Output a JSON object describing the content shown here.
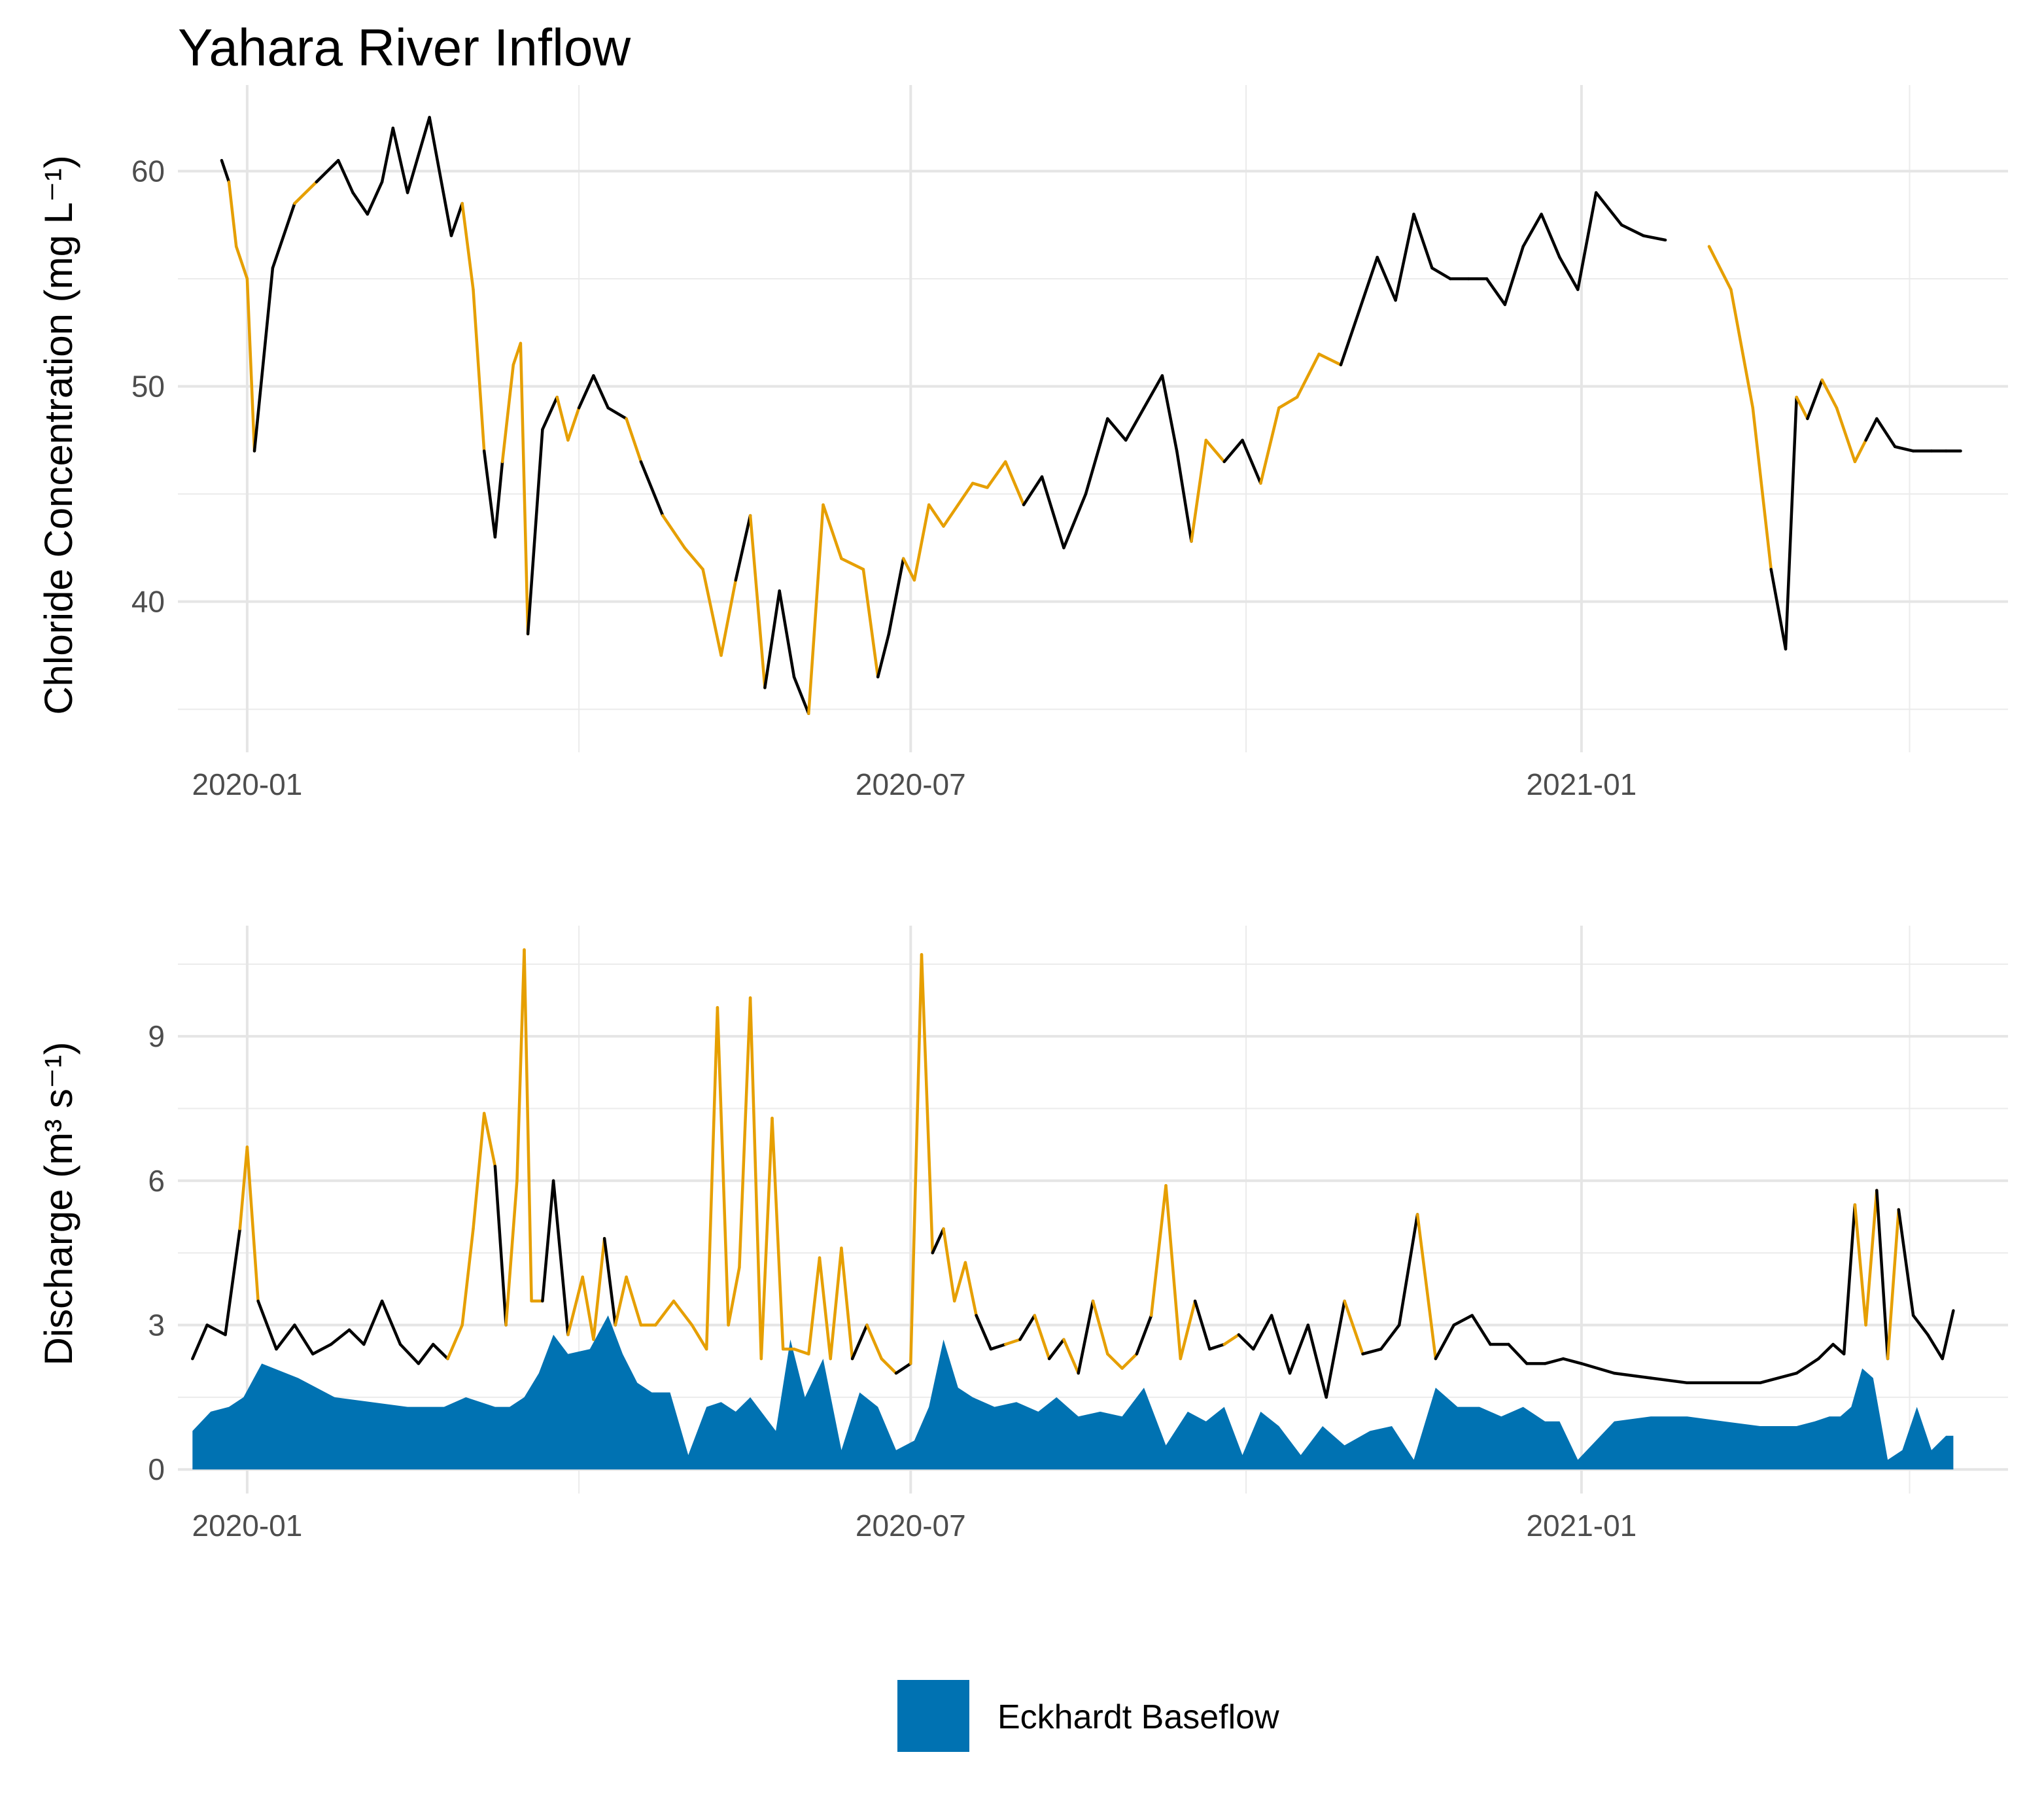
{
  "chart_data": [
    {
      "type": "line",
      "title": "Yahara River Inflow",
      "ylabel": "Chloride Concentration (mg L⁻¹)",
      "x_tick_labels": [
        "2020-01",
        "2020-07",
        "2021-01"
      ],
      "y_tick_labels": [
        "40",
        "50",
        "60"
      ],
      "ylim": [
        33,
        64
      ],
      "xlim": [
        "2019-12-13",
        "2021-04-28"
      ],
      "grid": true,
      "colors": {
        "baseflow_period": "#000000",
        "event_period": "#E69F00"
      },
      "series": [
        {
          "x": [
            "2019-12-25",
            "2019-12-27",
            "2019-12-29",
            "2020-01-01",
            "2020-01-03",
            "2020-01-08",
            "2020-01-14",
            "2020-01-20",
            "2020-01-26",
            "2020-01-30",
            "2020-02-03",
            "2020-02-07",
            "2020-02-10",
            "2020-02-14",
            "2020-02-20",
            "2020-02-26",
            "2020-02-29",
            "2020-03-03",
            "2020-03-06",
            "2020-03-09",
            "2020-03-11",
            "2020-03-14",
            "2020-03-16",
            "2020-03-18",
            "2020-03-22",
            "2020-03-26",
            "2020-03-29",
            "2020-04-01",
            "2020-04-05",
            "2020-04-09",
            "2020-04-14",
            "2020-04-18",
            "2020-04-24",
            "2020-04-30",
            "2020-05-05",
            "2020-05-10",
            "2020-05-14",
            "2020-05-18",
            "2020-05-22",
            "2020-05-26",
            "2020-05-30",
            "2020-06-03",
            "2020-06-07",
            "2020-06-12",
            "2020-06-18",
            "2020-06-22",
            "2020-06-25",
            "2020-06-29",
            "2020-07-02",
            "2020-07-06",
            "2020-07-10",
            "2020-07-14",
            "2020-07-18",
            "2020-07-22",
            "2020-07-27",
            "2020-08-01",
            "2020-08-06",
            "2020-08-12",
            "2020-08-18",
            "2020-08-24",
            "2020-08-29",
            "2020-09-03",
            "2020-09-08",
            "2020-09-12",
            "2020-09-16",
            "2020-09-20",
            "2020-09-25",
            "2020-09-30",
            "2020-10-05",
            "2020-10-10",
            "2020-10-15",
            "2020-10-21",
            "2020-10-27",
            "2020-11-01",
            "2020-11-06",
            "2020-11-11",
            "2020-11-16",
            "2020-11-21",
            "2020-11-26",
            "2020-12-01",
            "2020-12-06",
            "2020-12-11",
            "2020-12-16",
            "2020-12-21",
            "2020-12-26",
            "2020-12-31",
            "2021-01-05",
            "2021-01-12",
            "2021-01-18",
            "2021-01-24",
            "2021-01-30",
            "2021-02-05",
            "2021-02-11",
            "2021-02-17",
            "2021-02-22",
            "2021-02-26",
            "2021-03-01",
            "2021-03-04",
            "2021-03-08",
            "2021-03-12",
            "2021-03-17",
            "2021-03-20",
            "2021-03-23",
            "2021-03-28",
            "2021-04-02",
            "2021-04-07",
            "2021-04-11",
            "2021-04-15"
          ],
          "values": [
            60.5,
            59.5,
            56.5,
            55.0,
            47.0,
            55.5,
            58.5,
            59.5,
            60.5,
            59.0,
            58.0,
            59.5,
            62.0,
            59.0,
            62.5,
            57.0,
            58.5,
            54.5,
            47.0,
            43.0,
            46.5,
            51.0,
            52.0,
            38.5,
            48.0,
            49.5,
            47.5,
            49.0,
            50.5,
            49.0,
            48.5,
            46.5,
            44.0,
            42.5,
            41.5,
            37.5,
            41.0,
            44.0,
            36.0,
            40.5,
            36.5,
            34.8,
            44.5,
            42.0,
            41.5,
            36.5,
            38.5,
            42.0,
            41.0,
            44.5,
            43.5,
            44.5,
            45.5,
            45.3,
            46.5,
            44.5,
            45.8,
            42.5,
            45.0,
            48.5,
            47.5,
            49.0,
            50.5,
            47.0,
            42.8,
            47.5,
            46.5,
            47.5,
            45.5,
            49.0,
            49.5,
            51.5,
            51.0,
            53.5,
            56.0,
            54.0,
            58.0,
            55.5,
            55.0,
            55.0,
            55.0,
            53.8,
            56.5,
            58.0,
            56.0,
            54.5,
            59.0,
            57.5,
            57.0,
            56.8,
            null,
            56.5,
            54.5,
            49.0,
            41.5,
            37.8,
            49.5,
            48.5,
            50.3,
            49.0,
            46.5,
            47.5,
            48.5,
            47.2,
            47.0,
            47.0,
            47.0,
            47.0
          ],
          "event": [
            false,
            true,
            true,
            true,
            false,
            false,
            true,
            false,
            false,
            false,
            false,
            false,
            false,
            false,
            false,
            false,
            true,
            true,
            false,
            false,
            true,
            true,
            true,
            false,
            false,
            true,
            true,
            false,
            false,
            false,
            true,
            false,
            true,
            true,
            true,
            true,
            false,
            true,
            false,
            false,
            false,
            true,
            true,
            true,
            true,
            false,
            false,
            true,
            true,
            true,
            true,
            true,
            true,
            true,
            true,
            false,
            false,
            false,
            false,
            false,
            false,
            false,
            false,
            false,
            true,
            true,
            false,
            false,
            true,
            true,
            true,
            true,
            false,
            false,
            false,
            false,
            false,
            false,
            false,
            false,
            false,
            false,
            false,
            false,
            false,
            false,
            false,
            false,
            false,
            false,
            false,
            true,
            true,
            true,
            false,
            false,
            true,
            false,
            true,
            true,
            true,
            false,
            false,
            false,
            false,
            false,
            false,
            false
          ]
        }
      ]
    },
    {
      "type": "area",
      "ylabel": "Discharge (m³ s⁻¹)",
      "x_tick_labels": [
        "2020-01",
        "2020-07",
        "2021-01"
      ],
      "y_tick_labels": [
        "0",
        "3",
        "6",
        "9"
      ],
      "ylim": [
        -0.5,
        11.3
      ],
      "xlim": [
        "2019-12-13",
        "2021-04-28"
      ],
      "grid": true,
      "colors": {
        "baseflow_fill": "#0072B2",
        "baseflow_period": "#000000",
        "event_period": "#E69F00"
      },
      "legend": {
        "position": "bottom",
        "entries": [
          {
            "label": "Eckhardt Baseflow",
            "color": "#0072B2"
          }
        ]
      },
      "series": [
        {
          "kind": "line",
          "x": [
            "2019-12-17",
            "2019-12-21",
            "2019-12-26",
            "2019-12-30",
            "2020-01-01",
            "2020-01-04",
            "2020-01-09",
            "2020-01-14",
            "2020-01-19",
            "2020-01-24",
            "2020-01-29",
            "2020-02-02",
            "2020-02-07",
            "2020-02-12",
            "2020-02-17",
            "2020-02-21",
            "2020-02-25",
            "2020-02-29",
            "2020-03-03",
            "2020-03-06",
            "2020-03-09",
            "2020-03-12",
            "2020-03-15",
            "2020-03-17",
            "2020-03-19",
            "2020-03-22",
            "2020-03-25",
            "2020-03-29",
            "2020-04-02",
            "2020-04-05",
            "2020-04-08",
            "2020-04-11",
            "2020-04-14",
            "2020-04-18",
            "2020-04-22",
            "2020-04-27",
            "2020-05-02",
            "2020-05-06",
            "2020-05-09",
            "2020-05-12",
            "2020-05-15",
            "2020-05-18",
            "2020-05-21",
            "2020-05-24",
            "2020-05-27",
            "2020-05-30",
            "2020-06-03",
            "2020-06-06",
            "2020-06-09",
            "2020-06-12",
            "2020-06-15",
            "2020-06-19",
            "2020-06-23",
            "2020-06-27",
            "2020-07-01",
            "2020-07-04",
            "2020-07-07",
            "2020-07-10",
            "2020-07-13",
            "2020-07-16",
            "2020-07-19",
            "2020-07-23",
            "2020-07-27",
            "2020-07-31",
            "2020-08-04",
            "2020-08-08",
            "2020-08-12",
            "2020-08-16",
            "2020-08-20",
            "2020-08-24",
            "2020-08-28",
            "2020-09-01",
            "2020-09-05",
            "2020-09-09",
            "2020-09-13",
            "2020-09-17",
            "2020-09-21",
            "2020-09-25",
            "2020-09-29",
            "2020-10-03",
            "2020-10-08",
            "2020-10-13",
            "2020-10-18",
            "2020-10-23",
            "2020-10-28",
            "2020-11-02",
            "2020-11-07",
            "2020-11-12",
            "2020-11-17",
            "2020-11-22",
            "2020-11-27",
            "2020-12-02",
            "2020-12-07",
            "2020-12-12",
            "2020-12-17",
            "2020-12-22",
            "2020-12-27",
            "2021-01-01",
            "2021-01-10",
            "2021-01-20",
            "2021-01-30",
            "2021-02-09",
            "2021-02-19",
            "2021-03-01",
            "2021-03-07",
            "2021-03-11",
            "2021-03-14",
            "2021-03-17",
            "2021-03-20",
            "2021-03-23",
            "2021-03-26",
            "2021-03-29",
            "2021-04-02",
            "2021-04-06",
            "2021-04-10",
            "2021-04-13"
          ],
          "values": [
            2.3,
            3.0,
            2.8,
            5.0,
            6.7,
            3.5,
            2.5,
            3.0,
            2.4,
            2.6,
            2.9,
            2.6,
            3.5,
            2.6,
            2.2,
            2.6,
            2.3,
            3.0,
            5.0,
            7.4,
            6.3,
            3.0,
            6.0,
            10.8,
            3.5,
            3.5,
            6.0,
            2.8,
            4.0,
            2.7,
            4.8,
            3.0,
            4.0,
            3.0,
            3.0,
            3.5,
            3.0,
            2.5,
            9.6,
            3.0,
            4.2,
            9.8,
            2.3,
            7.3,
            2.5,
            2.5,
            2.4,
            4.4,
            2.3,
            4.6,
            2.3,
            3.0,
            2.3,
            2.0,
            2.2,
            10.7,
            4.5,
            5.0,
            3.5,
            4.3,
            3.2,
            2.5,
            2.6,
            2.7,
            3.2,
            2.3,
            2.7,
            2.0,
            3.5,
            2.4,
            2.1,
            2.4,
            3.2,
            5.9,
            2.3,
            3.5,
            2.5,
            2.6,
            2.8,
            2.5,
            3.2,
            2.0,
            3.0,
            1.5,
            3.5,
            2.4,
            2.5,
            3.0,
            5.3,
            2.3,
            3.0,
            3.2,
            2.6,
            2.6,
            2.2,
            2.2,
            2.3,
            2.2,
            2.0,
            1.9,
            1.8,
            1.8,
            1.8,
            2.0,
            2.3,
            2.6,
            2.4,
            5.5,
            3.0,
            5.8,
            2.3,
            5.4,
            3.2,
            2.8,
            2.3,
            3.3
          ],
          "event": [
            false,
            false,
            false,
            true,
            true,
            false,
            false,
            false,
            false,
            false,
            false,
            false,
            false,
            false,
            false,
            false,
            true,
            true,
            true,
            true,
            false,
            true,
            true,
            true,
            true,
            false,
            false,
            true,
            true,
            true,
            false,
            true,
            true,
            true,
            true,
            true,
            true,
            true,
            true,
            true,
            true,
            true,
            true,
            true,
            true,
            true,
            true,
            true,
            true,
            true,
            false,
            true,
            true,
            false,
            true,
            true,
            false,
            true,
            true,
            true,
            false,
            false,
            true,
            false,
            true,
            false,
            true,
            false,
            true,
            true,
            true,
            false,
            true,
            true,
            true,
            false,
            false,
            true,
            false,
            false,
            false,
            false,
            false,
            false,
            true,
            false,
            false,
            false,
            true,
            false,
            false,
            false,
            false,
            false,
            false,
            false,
            false,
            false,
            false,
            false,
            false,
            false,
            false,
            false,
            false,
            false,
            false,
            true,
            true,
            false,
            true,
            false,
            false,
            false,
            false,
            false
          ]
        },
        {
          "kind": "area",
          "name": "Eckhardt Baseflow",
          "x": [
            "2019-12-17",
            "2019-12-22",
            "2019-12-27",
            "2019-12-31",
            "2020-01-05",
            "2020-01-15",
            "2020-01-25",
            "2020-02-04",
            "2020-02-14",
            "2020-02-24",
            "2020-03-01",
            "2020-03-05",
            "2020-03-09",
            "2020-03-13",
            "2020-03-17",
            "2020-03-21",
            "2020-03-25",
            "2020-03-29",
            "2020-04-04",
            "2020-04-09",
            "2020-04-13",
            "2020-04-17",
            "2020-04-21",
            "2020-04-26",
            "2020-05-01",
            "2020-05-06",
            "2020-05-10",
            "2020-05-14",
            "2020-05-18",
            "2020-05-21",
            "2020-05-25",
            "2020-05-29",
            "2020-06-02",
            "2020-06-07",
            "2020-06-12",
            "2020-06-17",
            "2020-06-22",
            "2020-06-27",
            "2020-07-02",
            "2020-07-06",
            "2020-07-10",
            "2020-07-14",
            "2020-07-18",
            "2020-07-24",
            "2020-07-30",
            "2020-08-05",
            "2020-08-10",
            "2020-08-16",
            "2020-08-22",
            "2020-08-28",
            "2020-09-03",
            "2020-09-09",
            "2020-09-15",
            "2020-09-20",
            "2020-09-25",
            "2020-09-30",
            "2020-10-05",
            "2020-10-10",
            "2020-10-16",
            "2020-10-22",
            "2020-10-28",
            "2020-11-04",
            "2020-11-10",
            "2020-11-16",
            "2020-11-22",
            "2020-11-28",
            "2020-12-04",
            "2020-12-10",
            "2020-12-16",
            "2020-12-22",
            "2020-12-26",
            "2020-12-31",
            "2021-01-10",
            "2021-01-20",
            "2021-01-30",
            "2021-02-09",
            "2021-02-19",
            "2021-03-01",
            "2021-03-06",
            "2021-03-10",
            "2021-03-13",
            "2021-03-16",
            "2021-03-19",
            "2021-03-22",
            "2021-03-26",
            "2021-03-30",
            "2021-04-03",
            "2021-04-07",
            "2021-04-11",
            "2021-04-13"
          ],
          "values": [
            0.8,
            1.2,
            1.3,
            1.5,
            2.2,
            1.9,
            1.5,
            1.4,
            1.3,
            1.3,
            1.5,
            1.4,
            1.3,
            1.3,
            1.5,
            2.0,
            2.8,
            2.4,
            2.5,
            3.2,
            2.4,
            1.8,
            1.6,
            1.6,
            0.3,
            1.3,
            1.4,
            1.2,
            1.5,
            1.2,
            0.8,
            2.7,
            1.5,
            2.3,
            0.4,
            1.6,
            1.3,
            0.4,
            0.6,
            1.3,
            2.7,
            1.7,
            1.5,
            1.3,
            1.4,
            1.2,
            1.5,
            1.1,
            1.2,
            1.1,
            1.7,
            0.5,
            1.2,
            1.0,
            1.3,
            0.3,
            1.2,
            0.9,
            0.3,
            0.9,
            0.5,
            0.8,
            0.9,
            0.2,
            1.7,
            1.3,
            1.3,
            1.1,
            1.3,
            1.0,
            1.0,
            0.2,
            1.0,
            1.1,
            1.1,
            1.0,
            0.9,
            0.9,
            1.0,
            1.1,
            1.1,
            1.3,
            2.1,
            1.9,
            0.2,
            0.4,
            1.3,
            0.4,
            0.7,
            0.7
          ]
        }
      ]
    }
  ]
}
